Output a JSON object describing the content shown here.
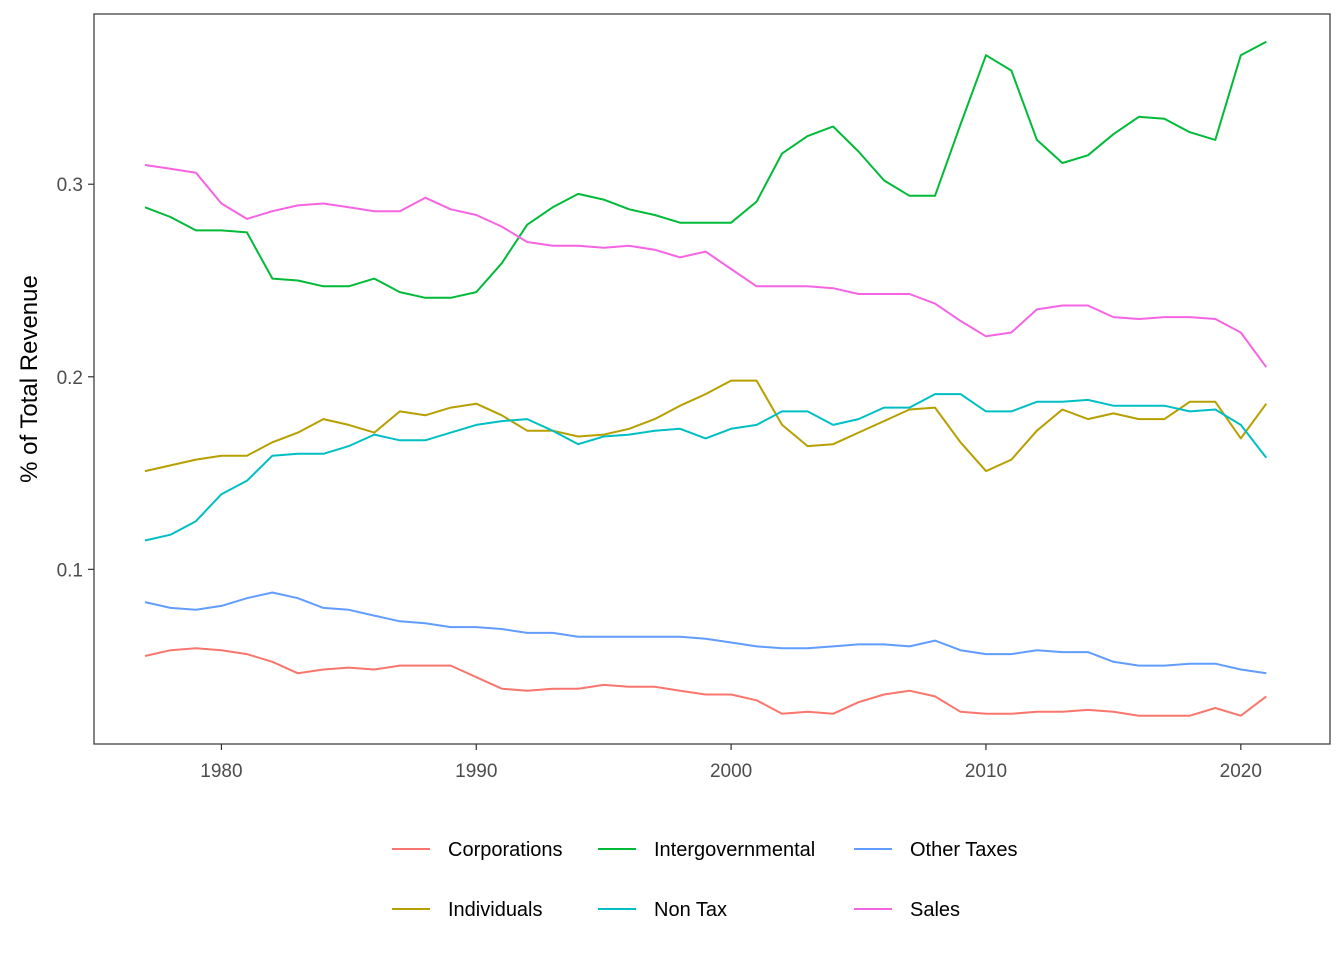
{
  "chart_data": {
    "type": "line",
    "title": "",
    "xlabel": "",
    "ylabel": "% of Total Revenue",
    "xlim": [
      1975,
      2023.5
    ],
    "ylim": [
      0.0093,
      0.3884
    ],
    "x_ticks": [
      1980,
      1990,
      2000,
      2010,
      2020
    ],
    "y_ticks": [
      0.1,
      0.2,
      0.3
    ],
    "x_tick_labels": [
      "1980",
      "1990",
      "2000",
      "2010",
      "2020"
    ],
    "y_tick_labels": [
      "0.1",
      "0.2",
      "0.3"
    ],
    "grid": false,
    "legend_position": "bottom",
    "x": [
      1977,
      1978,
      1979,
      1980,
      1981,
      1982,
      1983,
      1984,
      1985,
      1986,
      1987,
      1988,
      1989,
      1990,
      1991,
      1992,
      1993,
      1994,
      1995,
      1996,
      1997,
      1998,
      1999,
      2000,
      2001,
      2002,
      2003,
      2004,
      2005,
      2006,
      2007,
      2008,
      2009,
      2010,
      2011,
      2012,
      2013,
      2014,
      2015,
      2016,
      2017,
      2018,
      2019,
      2020,
      2021
    ],
    "series": [
      {
        "name": "Corporations",
        "color": "#F8766D",
        "values": [
          0.055,
          0.058,
          0.059,
          0.058,
          0.056,
          0.052,
          0.046,
          0.048,
          0.049,
          0.048,
          0.05,
          0.05,
          0.05,
          0.044,
          0.038,
          0.037,
          0.038,
          0.038,
          0.04,
          0.039,
          0.039,
          0.037,
          0.035,
          0.035,
          0.032,
          0.025,
          0.026,
          0.025,
          0.031,
          0.035,
          0.037,
          0.034,
          0.026,
          0.025,
          0.025,
          0.026,
          0.026,
          0.027,
          0.026,
          0.024,
          0.024,
          0.024,
          0.028,
          0.024,
          0.034
        ]
      },
      {
        "name": "Individuals",
        "color": "#B79F00",
        "values": [
          0.151,
          0.154,
          0.157,
          0.159,
          0.159,
          0.166,
          0.171,
          0.178,
          0.175,
          0.171,
          0.182,
          0.18,
          0.184,
          0.186,
          0.18,
          0.172,
          0.172,
          0.169,
          0.17,
          0.173,
          0.178,
          0.185,
          0.191,
          0.198,
          0.198,
          0.175,
          0.164,
          0.165,
          0.171,
          0.177,
          0.183,
          0.184,
          0.166,
          0.151,
          0.157,
          0.172,
          0.183,
          0.178,
          0.181,
          0.178,
          0.178,
          0.187,
          0.187,
          0.168,
          0.186
        ]
      },
      {
        "name": "Intergovernmental",
        "color": "#00BA38",
        "values": [
          0.288,
          0.283,
          0.276,
          0.276,
          0.275,
          0.251,
          0.25,
          0.247,
          0.247,
          0.251,
          0.244,
          0.241,
          0.241,
          0.244,
          0.259,
          0.279,
          0.288,
          0.295,
          0.292,
          0.287,
          0.284,
          0.28,
          0.28,
          0.28,
          0.291,
          0.316,
          0.325,
          0.33,
          0.317,
          0.302,
          0.294,
          0.294,
          0.331,
          0.367,
          0.359,
          0.323,
          0.311,
          0.315,
          0.326,
          0.335,
          0.334,
          0.327,
          0.323,
          0.367,
          0.374
        ]
      },
      {
        "name": "Non Tax",
        "color": "#00BFC4",
        "values": [
          0.115,
          0.118,
          0.125,
          0.139,
          0.146,
          0.159,
          0.16,
          0.16,
          0.164,
          0.17,
          0.167,
          0.167,
          0.171,
          0.175,
          0.177,
          0.178,
          0.172,
          0.165,
          0.169,
          0.17,
          0.172,
          0.173,
          0.168,
          0.173,
          0.175,
          0.182,
          0.182,
          0.175,
          0.178,
          0.184,
          0.184,
          0.191,
          0.191,
          0.182,
          0.182,
          0.187,
          0.187,
          0.188,
          0.185,
          0.185,
          0.185,
          0.182,
          0.183,
          0.175,
          0.158
        ]
      },
      {
        "name": "Other Taxes",
        "color": "#619CFF",
        "values": [
          0.083,
          0.08,
          0.079,
          0.081,
          0.085,
          0.088,
          0.085,
          0.08,
          0.079,
          0.076,
          0.073,
          0.072,
          0.07,
          0.07,
          0.069,
          0.067,
          0.067,
          0.065,
          0.065,
          0.065,
          0.065,
          0.065,
          0.064,
          0.062,
          0.06,
          0.059,
          0.059,
          0.06,
          0.061,
          0.061,
          0.06,
          0.063,
          0.058,
          0.056,
          0.056,
          0.058,
          0.057,
          0.057,
          0.052,
          0.05,
          0.05,
          0.051,
          0.051,
          0.048,
          0.046
        ]
      },
      {
        "name": "Sales",
        "color": "#F564E3",
        "values": [
          0.31,
          0.308,
          0.306,
          0.29,
          0.282,
          0.286,
          0.289,
          0.29,
          0.288,
          0.286,
          0.286,
          0.293,
          0.287,
          0.284,
          0.278,
          0.27,
          0.268,
          0.268,
          0.267,
          0.268,
          0.266,
          0.262,
          0.265,
          0.256,
          0.247,
          0.247,
          0.247,
          0.246,
          0.243,
          0.243,
          0.243,
          0.238,
          0.229,
          0.221,
          0.223,
          0.235,
          0.237,
          0.237,
          0.231,
          0.23,
          0.231,
          0.231,
          0.23,
          0.223,
          0.205
        ]
      }
    ]
  }
}
